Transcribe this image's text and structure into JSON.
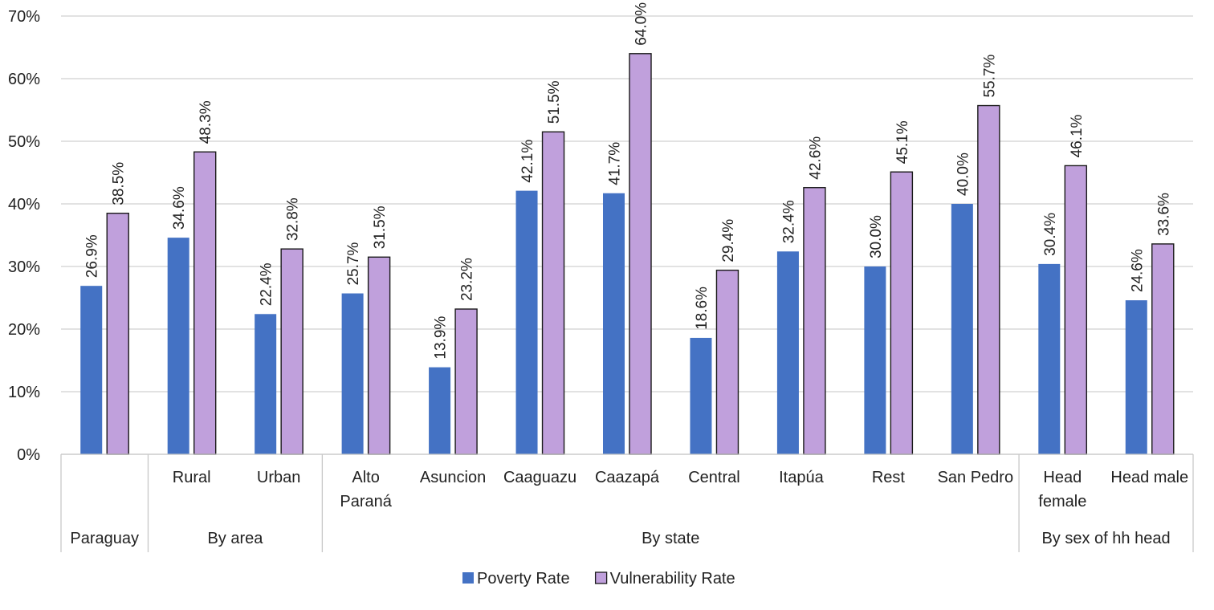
{
  "chart_data": {
    "type": "bar",
    "title": "",
    "xlabel": "",
    "ylabel": "",
    "ylim": [
      0,
      70
    ],
    "y_ticks": [
      "0%",
      "10%",
      "20%",
      "30%",
      "40%",
      "50%",
      "60%",
      "70%"
    ],
    "grid": true,
    "legend_position": "bottom",
    "categories": [
      [
        "Paraguay"
      ],
      [
        "Rural"
      ],
      [
        "Urban"
      ],
      [
        "Alto",
        "Paraná"
      ],
      [
        "Asuncion"
      ],
      [
        "Caaguazu"
      ],
      [
        "Caazapá"
      ],
      [
        "Central"
      ],
      [
        "Itapúa"
      ],
      [
        "Rest"
      ],
      [
        "San Pedro"
      ],
      [
        "Head",
        "female"
      ],
      [
        "Head male"
      ]
    ],
    "groups": [
      {
        "label": "Paraguay",
        "span": 1
      },
      {
        "label": "By area",
        "span": 2
      },
      {
        "label": "By state",
        "span": 8
      },
      {
        "label": "By sex of hh head",
        "span": 2
      }
    ],
    "series": [
      {
        "name": "Poverty Rate",
        "color": "#4472c4",
        "values": [
          26.9,
          34.6,
          22.4,
          25.7,
          13.9,
          42.1,
          41.7,
          18.6,
          32.4,
          30.0,
          40.0,
          30.4,
          24.6
        ],
        "labels": [
          "26.9%",
          "34.6%",
          "22.4%",
          "25.7%",
          "13.9%",
          "42.1%",
          "41.7%",
          "18.6%",
          "32.4%",
          "30.0%",
          "40.0%",
          "30.4%",
          "24.6%"
        ]
      },
      {
        "name": "Vulnerability Rate",
        "color": "#c0a0dc",
        "values": [
          38.5,
          48.3,
          32.8,
          31.5,
          23.2,
          51.5,
          64.0,
          29.4,
          42.6,
          45.1,
          55.7,
          46.1,
          33.6
        ],
        "labels": [
          "38.5%",
          "48.3%",
          "32.8%",
          "31.5%",
          "23.2%",
          "51.5%",
          "64.0%",
          "29.4%",
          "42.6%",
          "45.1%",
          "55.7%",
          "46.1%",
          "33.6%"
        ]
      }
    ]
  }
}
